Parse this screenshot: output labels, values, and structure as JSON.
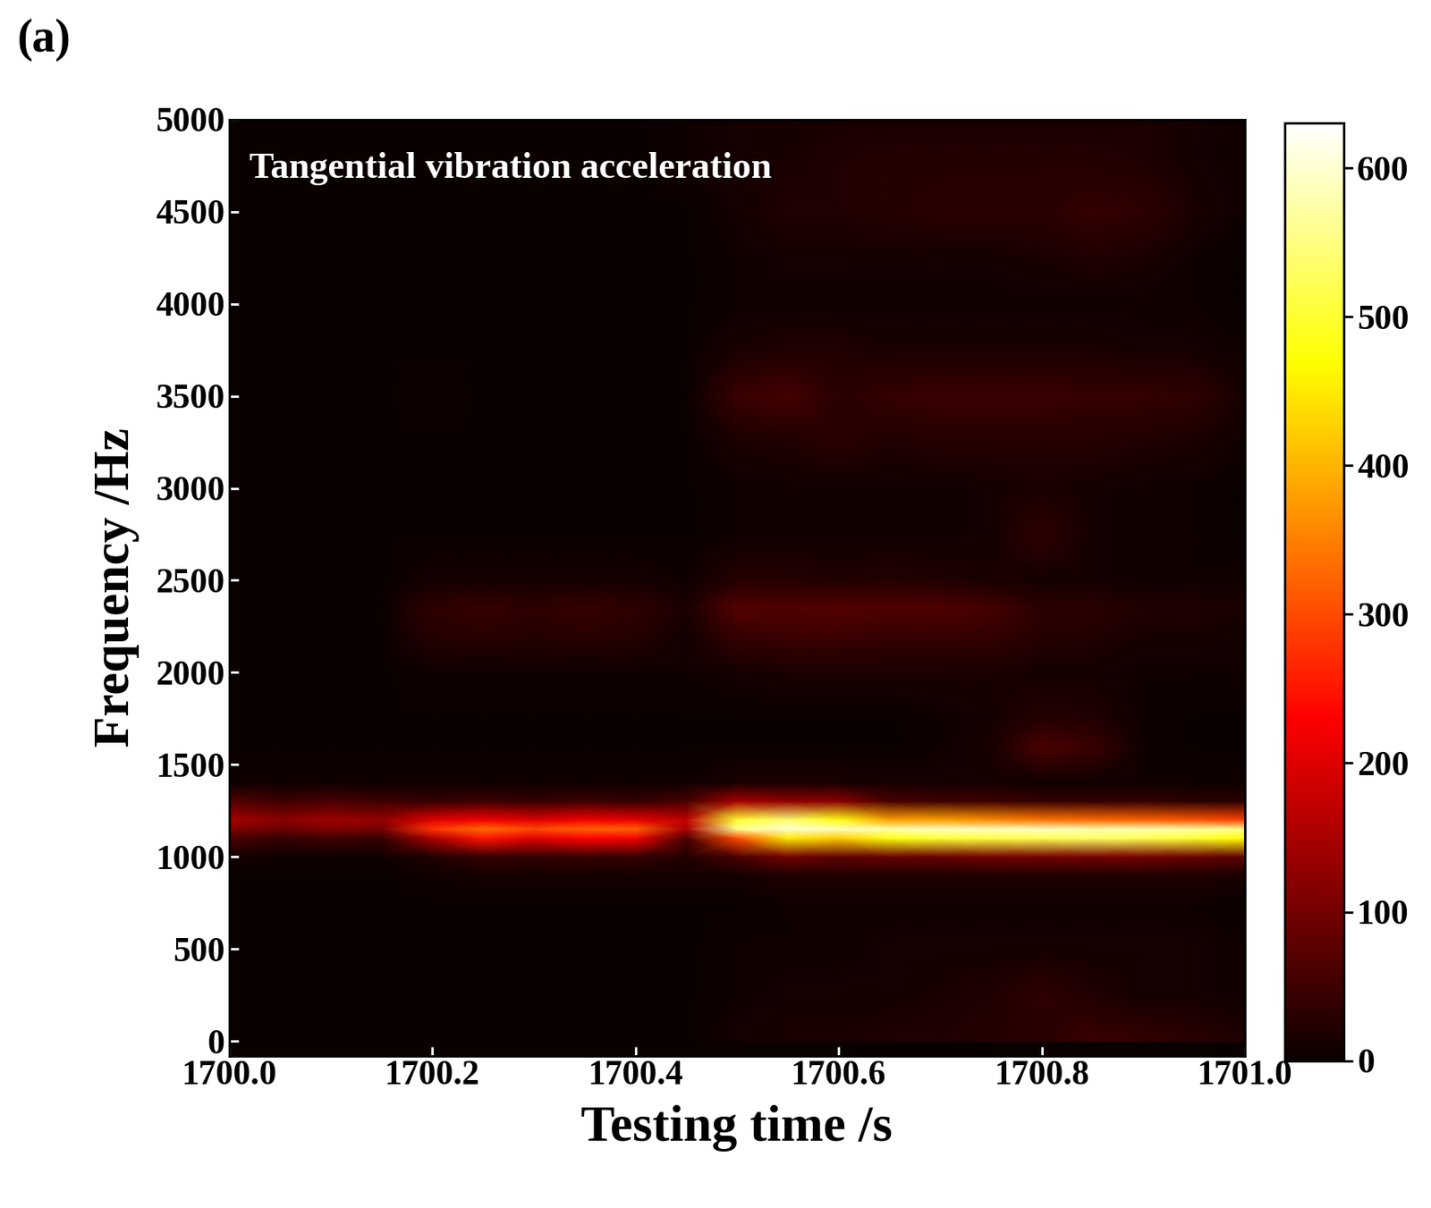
{
  "chart_data": {
    "type": "heatmap",
    "panel_label": "(a)",
    "annotation": "Tangential vibration acceleration",
    "x_label": "Testing time /s",
    "y_label": "Frequency /Hz",
    "grid": false,
    "xlim": [
      1700.0,
      1701.0
    ],
    "xticks": [
      {
        "value": 1700.0,
        "label": "1700.0"
      },
      {
        "value": 1700.2,
        "label": "1700.2"
      },
      {
        "value": 1700.4,
        "label": "1700.4"
      },
      {
        "value": 1700.6,
        "label": "1700.6"
      },
      {
        "value": 1700.8,
        "label": "1700.8"
      },
      {
        "value": 1701.0,
        "label": "1701.0"
      }
    ],
    "ylim": [
      -80,
      5000
    ],
    "yticks": [
      0,
      500,
      1000,
      1500,
      2000,
      2500,
      3000,
      3500,
      4000,
      4500,
      5000
    ],
    "colorbar_range": [
      0,
      630
    ],
    "colorbar_ticks": [
      0,
      100,
      200,
      300,
      400,
      500,
      600
    ],
    "x": [
      1700.0,
      1700.05,
      1700.1,
      1700.15,
      1700.2,
      1700.25,
      1700.3,
      1700.35,
      1700.4,
      1700.45,
      1700.5,
      1700.55,
      1700.6,
      1700.65,
      1700.7,
      1700.75,
      1700.8,
      1700.85,
      1700.9,
      1700.95,
      1701.0
    ],
    "y": [
      0,
      250,
      500,
      750,
      900,
      1000,
      1100,
      1150,
      1200,
      1300,
      1400,
      1600,
      1750,
      2000,
      2250,
      2350,
      2500,
      2750,
      3000,
      3250,
      3500,
      3750,
      4000,
      4250,
      4500,
      4750,
      5000
    ],
    "cells": [
      [
        0,
        0,
        0,
        0,
        0,
        0,
        0,
        0,
        0,
        0,
        10,
        15,
        15,
        20,
        20,
        25,
        30,
        45,
        40,
        30,
        20
      ],
      [
        0,
        0,
        0,
        0,
        0,
        0,
        0,
        0,
        0,
        0,
        5,
        10,
        10,
        10,
        15,
        20,
        35,
        20,
        10,
        10,
        5
      ],
      [
        0,
        0,
        0,
        0,
        0,
        0,
        0,
        0,
        0,
        0,
        5,
        5,
        5,
        10,
        10,
        10,
        10,
        10,
        10,
        10,
        5
      ],
      [
        0,
        0,
        0,
        0,
        0,
        0,
        0,
        0,
        0,
        0,
        0,
        5,
        5,
        5,
        5,
        5,
        5,
        5,
        5,
        5,
        0
      ],
      [
        0,
        0,
        0,
        0,
        5,
        10,
        10,
        10,
        10,
        10,
        10,
        20,
        20,
        20,
        20,
        20,
        20,
        20,
        20,
        20,
        15
      ],
      [
        10,
        5,
        5,
        5,
        20,
        40,
        35,
        40,
        40,
        20,
        60,
        100,
        80,
        90,
        90,
        100,
        100,
        100,
        100,
        90,
        80
      ],
      [
        60,
        40,
        50,
        40,
        150,
        250,
        200,
        230,
        220,
        60,
        300,
        450,
        420,
        480,
        500,
        510,
        520,
        530,
        520,
        500,
        470
      ],
      [
        110,
        90,
        110,
        100,
        280,
        330,
        300,
        320,
        320,
        150,
        560,
        600,
        590,
        580,
        590,
        590,
        590,
        580,
        580,
        570,
        560
      ],
      [
        150,
        120,
        140,
        130,
        200,
        220,
        200,
        220,
        210,
        170,
        500,
        540,
        480,
        380,
        380,
        360,
        340,
        330,
        320,
        310,
        290
      ],
      [
        70,
        50,
        60,
        50,
        40,
        50,
        40,
        50,
        40,
        60,
        150,
        130,
        120,
        60,
        50,
        50,
        40,
        40,
        40,
        30,
        30
      ],
      [
        5,
        5,
        5,
        5,
        5,
        5,
        5,
        5,
        5,
        5,
        15,
        15,
        15,
        10,
        10,
        10,
        5,
        5,
        5,
        5,
        5
      ],
      [
        0,
        0,
        0,
        0,
        0,
        0,
        0,
        0,
        0,
        0,
        0,
        0,
        0,
        0,
        5,
        15,
        60,
        45,
        5,
        0,
        0
      ],
      [
        0,
        0,
        0,
        0,
        0,
        0,
        0,
        0,
        0,
        0,
        0,
        0,
        0,
        0,
        5,
        10,
        25,
        20,
        5,
        0,
        0
      ],
      [
        0,
        0,
        0,
        0,
        5,
        5,
        5,
        5,
        5,
        5,
        10,
        15,
        15,
        15,
        15,
        15,
        10,
        10,
        5,
        5,
        5
      ],
      [
        0,
        0,
        0,
        0,
        30,
        35,
        30,
        35,
        30,
        10,
        50,
        55,
        55,
        50,
        50,
        45,
        30,
        25,
        15,
        15,
        10
      ],
      [
        0,
        0,
        0,
        0,
        35,
        40,
        35,
        40,
        35,
        15,
        70,
        65,
        70,
        65,
        65,
        55,
        30,
        30,
        20,
        20,
        15
      ],
      [
        0,
        0,
        0,
        0,
        10,
        10,
        10,
        10,
        10,
        5,
        25,
        25,
        20,
        25,
        20,
        15,
        10,
        10,
        5,
        5,
        5
      ],
      [
        0,
        0,
        0,
        0,
        0,
        0,
        0,
        0,
        0,
        0,
        5,
        5,
        5,
        5,
        5,
        10,
        35,
        10,
        5,
        5,
        0
      ],
      [
        0,
        0,
        0,
        0,
        0,
        0,
        0,
        0,
        0,
        0,
        5,
        5,
        5,
        5,
        5,
        10,
        15,
        10,
        5,
        5,
        0
      ],
      [
        0,
        0,
        0,
        0,
        0,
        0,
        0,
        0,
        0,
        0,
        15,
        20,
        30,
        20,
        25,
        25,
        25,
        25,
        20,
        15,
        5
      ],
      [
        0,
        0,
        0,
        0,
        5,
        0,
        0,
        0,
        0,
        0,
        45,
        55,
        30,
        40,
        45,
        45,
        45,
        40,
        40,
        35,
        10
      ],
      [
        0,
        0,
        0,
        0,
        0,
        0,
        0,
        0,
        0,
        0,
        15,
        20,
        20,
        15,
        15,
        15,
        15,
        15,
        10,
        10,
        5
      ],
      [
        0,
        0,
        0,
        0,
        0,
        0,
        0,
        0,
        0,
        0,
        5,
        5,
        5,
        5,
        5,
        5,
        5,
        5,
        5,
        5,
        0
      ],
      [
        0,
        0,
        0,
        0,
        0,
        0,
        0,
        0,
        0,
        0,
        5,
        10,
        10,
        10,
        10,
        10,
        15,
        20,
        15,
        5,
        0
      ],
      [
        0,
        0,
        0,
        0,
        0,
        0,
        0,
        0,
        0,
        0,
        10,
        20,
        20,
        25,
        30,
        30,
        30,
        40,
        35,
        15,
        5
      ],
      [
        0,
        0,
        0,
        0,
        0,
        0,
        0,
        0,
        0,
        5,
        10,
        15,
        20,
        25,
        25,
        25,
        25,
        25,
        20,
        10,
        5
      ],
      [
        0,
        0,
        0,
        0,
        0,
        0,
        0,
        0,
        0,
        5,
        10,
        10,
        15,
        15,
        15,
        15,
        15,
        15,
        15,
        10,
        5
      ]
    ]
  }
}
